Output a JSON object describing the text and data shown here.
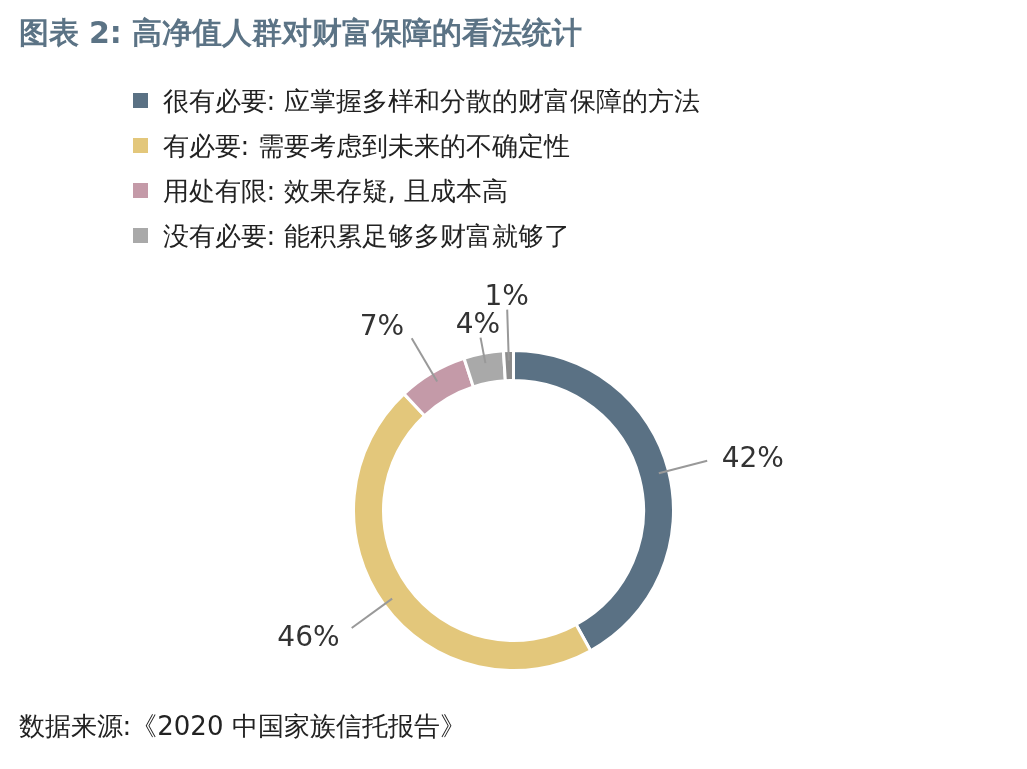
{
  "chart_data": {
    "type": "donut",
    "title": "图表 2: 高净值人群对财富保障的看法统计",
    "categories": [
      "很有必要: 应掌握多样和分散的财富保障的方法",
      "有必要: 需要考虑到未来的不确定性",
      "用处有限: 效果存疑, 且成本高",
      "没有必要: 能积累足够多财富就够了",
      null
    ],
    "values": [
      42,
      46,
      7,
      4,
      1
    ],
    "colors": [
      "#5a7184",
      "#e3c77b",
      "#c49aa8",
      "#a9a9a9",
      "#8c8c8c"
    ],
    "value_labels": [
      "42%",
      "46%",
      "7%",
      "4%",
      "1%"
    ],
    "legend": "top",
    "annotations": [
      "数据来源:《2020 中国家族信托报告》"
    ]
  }
}
